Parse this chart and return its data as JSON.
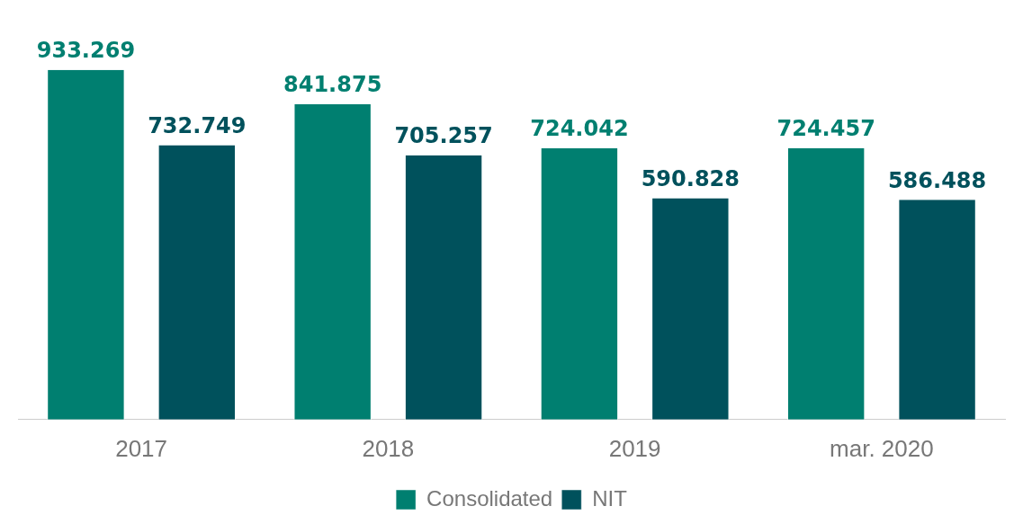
{
  "chart_data": {
    "type": "bar",
    "categories": [
      "2017",
      "2018",
      "2019",
      "mar. 2020"
    ],
    "series": [
      {
        "name": "Consolidated",
        "color": "#007f70",
        "values": [
          933269,
          841875,
          724042,
          724457
        ],
        "value_labels": [
          "933.269",
          "841.875",
          "724.042",
          "724.457"
        ]
      },
      {
        "name": "NIT",
        "color": "#00515c",
        "values": [
          732749,
          705257,
          590828,
          586488
        ],
        "value_labels": [
          "732.749",
          "705.257",
          "590.828",
          "586.488"
        ]
      }
    ],
    "legend": "bottom",
    "grid": false
  }
}
